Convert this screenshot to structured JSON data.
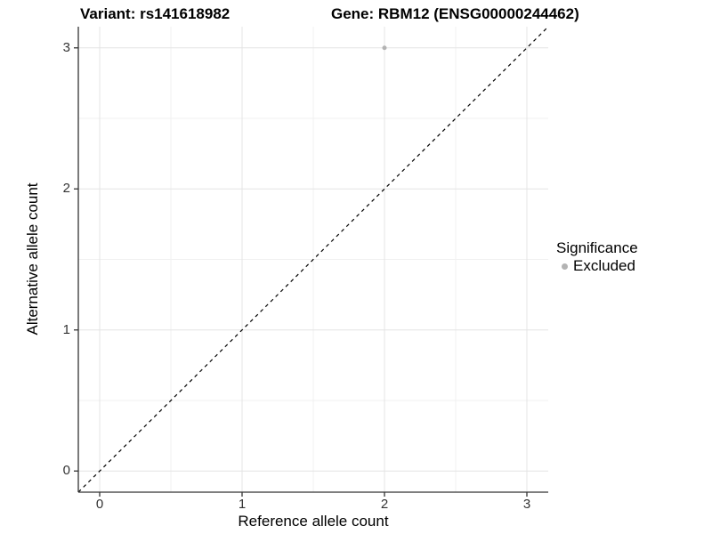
{
  "chart_data": {
    "type": "scatter",
    "titles": {
      "left": "Variant: rs141618982",
      "right": "Gene: RBM12 (ENSG00000244462)"
    },
    "xlabel": "Reference allele count",
    "ylabel": "Alternative allele count",
    "xlim": [
      -0.15,
      3.15
    ],
    "ylim": [
      -0.15,
      3.15
    ],
    "x_ticks": [
      0,
      1,
      2,
      3
    ],
    "y_ticks": [
      0,
      1,
      2,
      3
    ],
    "x_minor_ticks": [
      0.5,
      1.5,
      2.5
    ],
    "y_minor_ticks": [
      0.5,
      1.5,
      2.5
    ],
    "grid": {
      "major": true,
      "minor": true
    },
    "reference_line": {
      "style": "dashed",
      "color": "#000000",
      "from": {
        "x": -0.15,
        "y": -0.15
      },
      "to": {
        "x": 3.15,
        "y": 3.15
      }
    },
    "series": [
      {
        "name": "Excluded",
        "color": "#b3b3b3",
        "point_radius": 2.5,
        "points": [
          {
            "x": 2,
            "y": 3
          }
        ]
      }
    ],
    "legend": {
      "title": "Significance",
      "position": "right",
      "entries": [
        {
          "label": "Excluded",
          "color": "#b3b3b3"
        }
      ]
    }
  },
  "colors": {
    "background": "#ffffff",
    "grid_major": "#e4e4e4",
    "grid_minor": "#f1f1f1",
    "axis_line": "#333333",
    "tick_mark": "#333333",
    "tick_label": "#333333",
    "title_text": "#000000"
  }
}
